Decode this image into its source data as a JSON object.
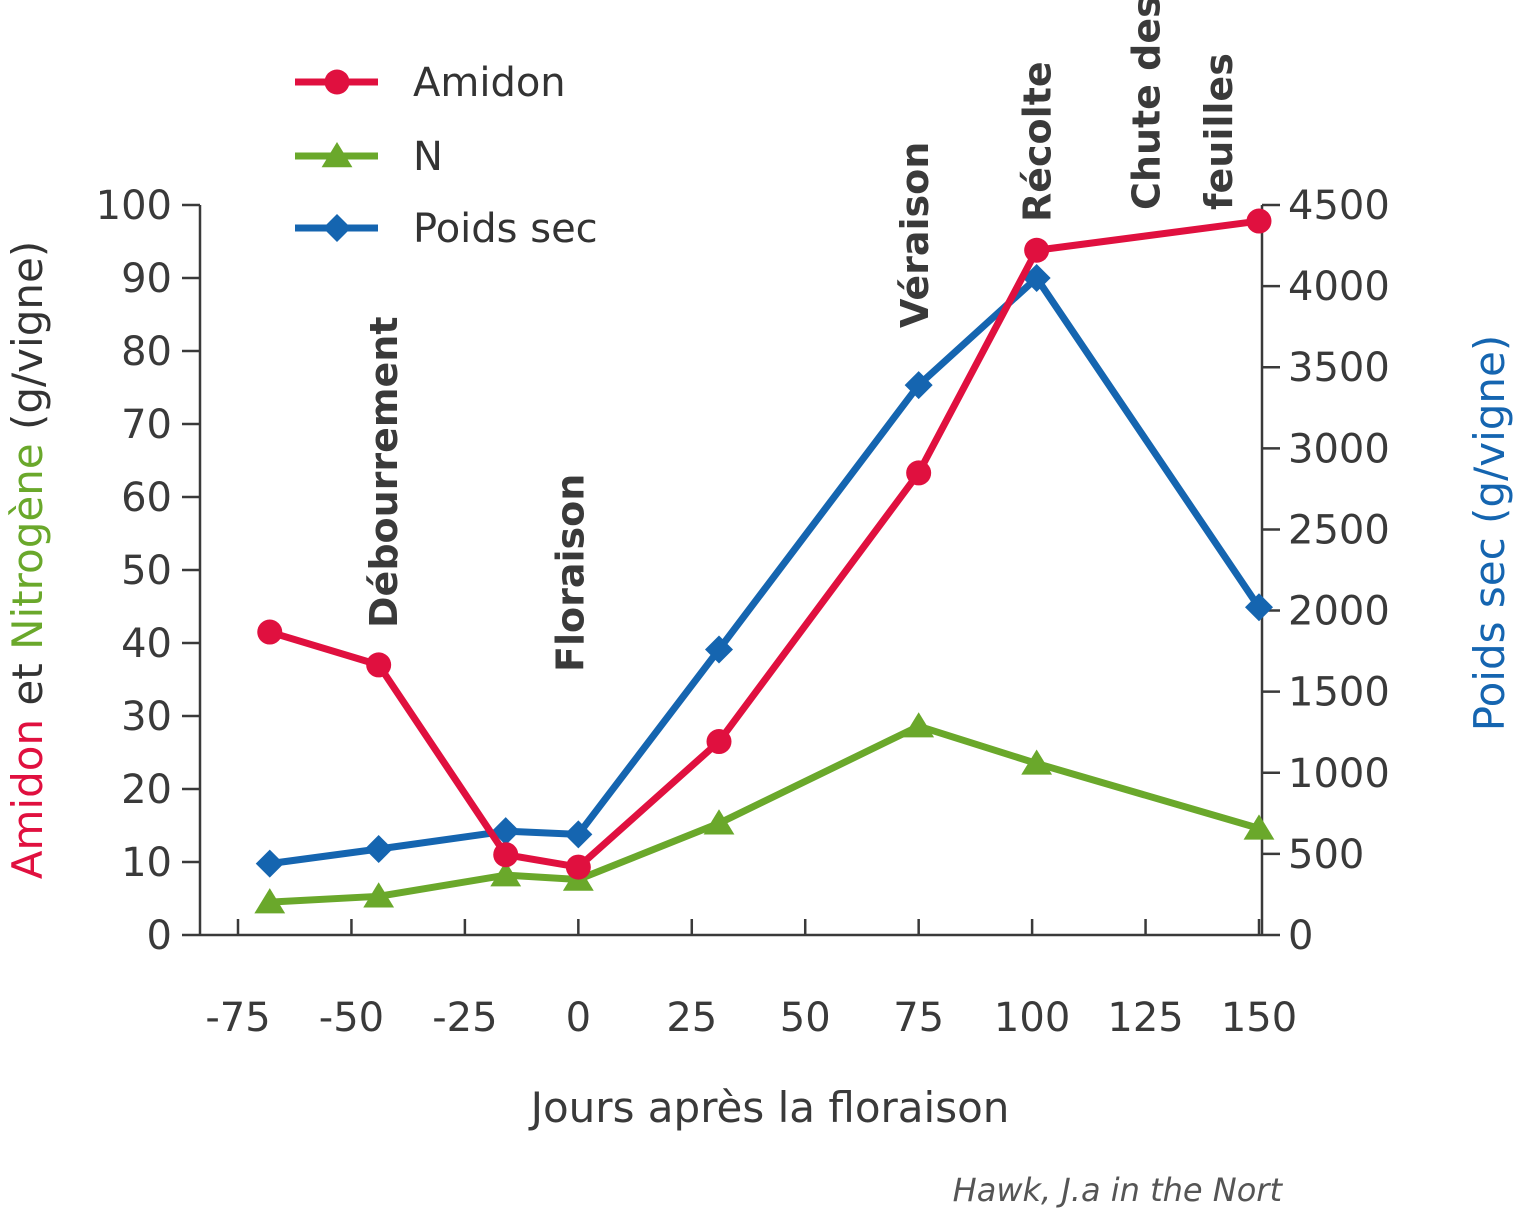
{
  "chart_data": {
    "type": "line",
    "xlabel": "Jours après la floraison",
    "ylabel_left_parts": [
      {
        "text": "Amidon",
        "color": "#e0103f"
      },
      {
        "text": " et ",
        "color": "#333333"
      },
      {
        "text": "Nitrogène",
        "color": "#6aa82b"
      },
      {
        "text": " (g/vigne)",
        "color": "#333333"
      }
    ],
    "ylabel_right": "Poids sec (g/vigne)",
    "ylabel_right_color": "#1565b0",
    "xlim": [
      -75,
      150
    ],
    "x_ticks": [
      -75,
      -50,
      -25,
      0,
      25,
      50,
      75,
      100,
      125,
      150
    ],
    "ylim_left": [
      0,
      100
    ],
    "y_ticks_left": [
      0,
      10,
      20,
      30,
      40,
      50,
      60,
      70,
      80,
      90,
      100
    ],
    "ylim_right": [
      0,
      4500
    ],
    "y_ticks_right": [
      0,
      500,
      1000,
      1500,
      2000,
      2500,
      3000,
      3500,
      4000,
      4500
    ],
    "series": [
      {
        "name": "Amidon",
        "axis": "left",
        "color": "#e0103f",
        "marker": "circle",
        "x": [
          -68,
          -44,
          -16,
          0,
          31,
          75,
          101,
          150
        ],
        "values": [
          41.5,
          37,
          11,
          9.3,
          26.5,
          63.3,
          93.8,
          97.8
        ]
      },
      {
        "name": "N",
        "axis": "left",
        "color": "#6aa82b",
        "marker": "triangle",
        "x": [
          -68,
          -44,
          -16,
          0,
          31,
          75,
          101,
          150
        ],
        "values": [
          4.5,
          5.3,
          8.2,
          7.6,
          15.3,
          28.6,
          23.5,
          14.6
        ]
      },
      {
        "name": "Poids sec",
        "axis": "right",
        "color": "#1565b0",
        "marker": "diamond",
        "x": [
          -68,
          -44,
          -16,
          0,
          31,
          75,
          101,
          150
        ],
        "values": [
          440,
          530,
          640,
          620,
          1760,
          3390,
          4050,
          2020
        ]
      }
    ],
    "annotations": [
      {
        "text": "Débourrement",
        "x": -43
      },
      {
        "text": "Floraison",
        "x": -2
      },
      {
        "text": "Véraison",
        "x": 74
      },
      {
        "text": "Récolte",
        "x": 101
      },
      {
        "text": "Chute des",
        "x": 125
      },
      {
        "text": "feuilles",
        "x": 141
      }
    ],
    "legend_position": "top-left",
    "grid": false
  },
  "source": "Hawk, J.a in the Nort"
}
